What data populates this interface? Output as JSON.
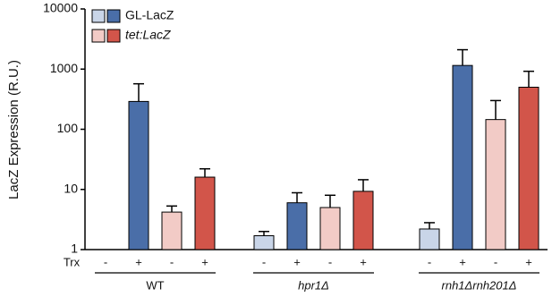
{
  "chart_data": {
    "type": "bar",
    "y_label": "LacZ Expression (R.U.)",
    "x_label": "Trx",
    "categories": [
      "WT",
      "hpr1Δ",
      "rnh1Δrnh201Δ"
    ],
    "log_scale": true,
    "ylim": [
      1,
      10000
    ],
    "yticks": [
      1,
      10,
      100,
      1000,
      10000
    ],
    "legend": "top-left",
    "series": [
      {
        "name": "GL-LacZ",
        "conditions": [
          {
            "trx": "-",
            "color": "#c9d5e8",
            "values": [
              null,
              1.7,
              2.2
            ],
            "errors": [
              null,
              0.3,
              0.6
            ]
          },
          {
            "trx": "+",
            "color": "#4a6ea8",
            "values": [
              290,
              6,
              1150
            ],
            "errors": [
              280,
              2.8,
              950
            ]
          }
        ]
      },
      {
        "name": "tet:LacZ",
        "conditions": [
          {
            "trx": "-",
            "color": "#f2cbc6",
            "values": [
              4.2,
              5,
              145
            ],
            "errors": [
              1.1,
              3,
              155
            ]
          },
          {
            "trx": "+",
            "color": "#d2554a",
            "values": [
              16,
              9.3,
              500
            ],
            "errors": [
              6,
              5.2,
              420
            ]
          }
        ]
      }
    ]
  }
}
